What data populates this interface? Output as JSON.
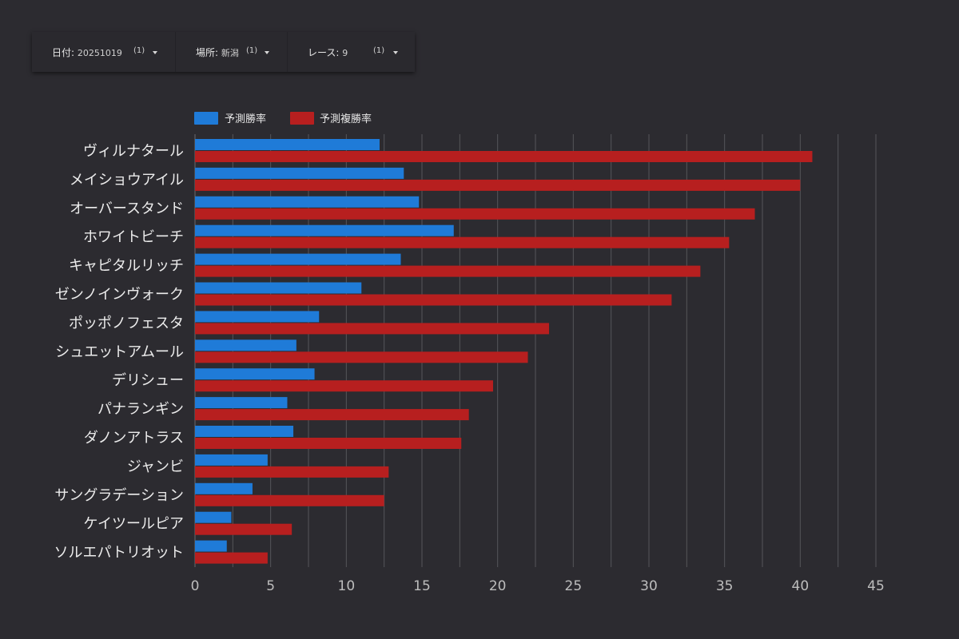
{
  "filters": [
    {
      "label": "日付",
      "value": "20251019",
      "count": "(1)"
    },
    {
      "label": "場所",
      "value": "新潟",
      "count": "(1)"
    },
    {
      "label": "レース",
      "value": "9",
      "count": "(1)"
    }
  ],
  "colors": {
    "background": "#2c2b30",
    "series_win": "#1f7bd8",
    "series_place": "#b71f1f",
    "grid": "#56555a"
  },
  "chart_data": {
    "type": "bar",
    "orientation": "horizontal",
    "title": "",
    "xlabel": "",
    "ylabel": "",
    "xlim": [
      0,
      45
    ],
    "xticks": [
      0,
      5,
      10,
      15,
      20,
      25,
      30,
      35,
      40,
      45
    ],
    "legend_position": "top-left",
    "grid": true,
    "categories": [
      "ヴィルナタール",
      "メイショウアイル",
      "オーバースタンド",
      "ホワイトビーチ",
      "キャピタルリッチ",
      "ゼンノインヴォーク",
      "ポッポノフェスタ",
      "シュエットアムール",
      "デリシュー",
      "パナランギン",
      "ダノンアトラス",
      "ジャンビ",
      "サングラデーション",
      "ケイツールピア",
      "ソルエパトリオット"
    ],
    "series": [
      {
        "name": "予測勝率",
        "values": [
          12.2,
          13.8,
          14.8,
          17.1,
          13.6,
          11.0,
          8.2,
          6.7,
          7.9,
          6.1,
          6.5,
          4.8,
          3.8,
          2.4,
          2.1
        ]
      },
      {
        "name": "予測複勝率",
        "values": [
          40.8,
          40.0,
          37.0,
          35.3,
          33.4,
          31.5,
          23.4,
          22.0,
          19.7,
          18.1,
          17.6,
          12.8,
          12.5,
          6.4,
          4.8
        ]
      }
    ]
  }
}
